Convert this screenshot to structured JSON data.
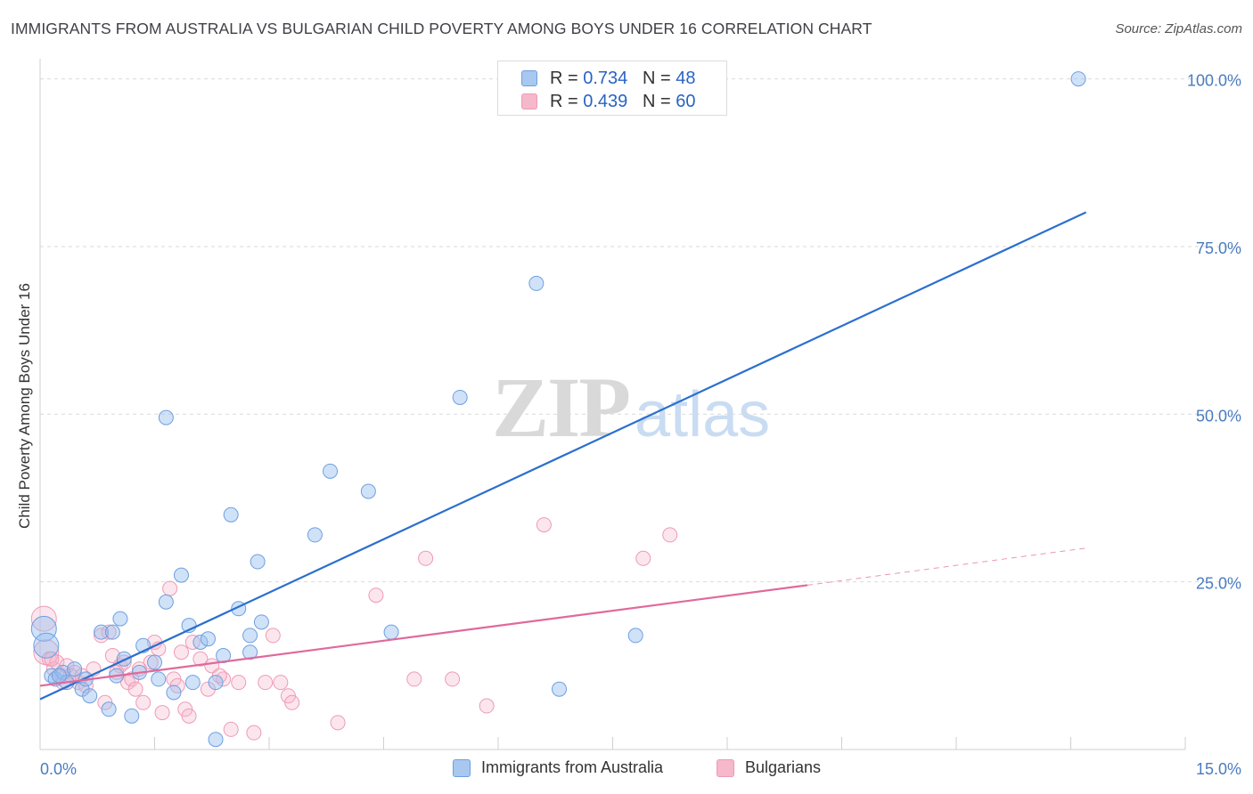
{
  "title": "IMMIGRANTS FROM AUSTRALIA VS BULGARIAN CHILD POVERTY AMONG BOYS UNDER 16 CORRELATION CHART",
  "source": "Source: ZipAtlas.com",
  "watermark": {
    "zip": "ZIP",
    "atlas": "atlas"
  },
  "legend_stats": [
    {
      "r_label": "R = ",
      "r_value": "0.734",
      "n_label": "N = ",
      "n_value": "48",
      "color": "#a8c8f0"
    },
    {
      "r_label": "R = ",
      "r_value": "0.439",
      "n_label": "N = ",
      "n_value": "60",
      "color": "#f6b8cb"
    }
  ],
  "bottom_legend": [
    {
      "label": "Immigrants from Australia",
      "color": "#a8c8f0"
    },
    {
      "label": "Bulgarians",
      "color": "#f6b8cb"
    }
  ],
  "colors": {
    "blue_line": "#2a6fcf",
    "pink_line": "#e0699a",
    "blue_fill": "rgba(150,190,240,0.45)",
    "blue_stroke": "#6e9fe0",
    "pink_fill": "rgba(246,184,203,0.35)",
    "pink_stroke": "#ee9ab6",
    "grid": "#dadada",
    "tick_label": "#4a7cc0"
  },
  "chart_data": {
    "type": "scatter",
    "title": "IMMIGRANTS FROM AUSTRALIA VS BULGARIAN CHILD POVERTY AMONG BOYS UNDER 16 CORRELATION CHART",
    "xlabel": "",
    "ylabel": "Child Poverty Among Boys Under 16",
    "xlim": [
      0,
      15
    ],
    "ylim": [
      0,
      103
    ],
    "x_tick_labels": [
      "0.0%",
      "15.0%"
    ],
    "y_ticks": [
      25,
      50,
      75,
      100
    ],
    "y_tick_labels": [
      "25.0%",
      "50.0%",
      "75.0%",
      "100.0%"
    ],
    "grid": true,
    "legend_position": "top-center",
    "series": [
      {
        "name": "Immigrants from Australia",
        "color": "#6e9fe0",
        "points": [
          [
            0.05,
            18.0
          ],
          [
            0.08,
            15.5
          ],
          [
            0.15,
            11.0
          ],
          [
            0.2,
            10.5
          ],
          [
            0.3,
            11.5
          ],
          [
            0.35,
            10.0
          ],
          [
            0.45,
            12.0
          ],
          [
            0.55,
            9.0
          ],
          [
            0.65,
            8.0
          ],
          [
            0.8,
            17.5
          ],
          [
            0.9,
            6.0
          ],
          [
            1.05,
            19.5
          ],
          [
            1.1,
            13.5
          ],
          [
            1.2,
            5.0
          ],
          [
            1.3,
            11.5
          ],
          [
            1.35,
            15.5
          ],
          [
            1.5,
            13.0
          ],
          [
            1.55,
            10.5
          ],
          [
            1.65,
            22.0
          ],
          [
            1.75,
            8.5
          ],
          [
            1.85,
            26.0
          ],
          [
            1.95,
            18.5
          ],
          [
            2.0,
            10.0
          ],
          [
            2.1,
            16.0
          ],
          [
            2.2,
            16.5
          ],
          [
            2.3,
            10.0
          ],
          [
            2.4,
            14.0
          ],
          [
            2.5,
            35.0
          ],
          [
            2.6,
            21.0
          ],
          [
            2.75,
            17.0
          ],
          [
            2.85,
            28.0
          ],
          [
            2.9,
            19.0
          ],
          [
            3.6,
            32.0
          ],
          [
            3.8,
            41.5
          ],
          [
            4.3,
            38.5
          ],
          [
            4.6,
            17.5
          ],
          [
            1.65,
            49.5
          ],
          [
            5.5,
            52.5
          ],
          [
            6.5,
            69.5
          ],
          [
            6.8,
            9.0
          ],
          [
            7.8,
            17.0
          ],
          [
            13.6,
            100.0
          ],
          [
            0.6,
            10.5
          ],
          [
            1.0,
            11.0
          ],
          [
            2.3,
            1.5
          ],
          [
            2.75,
            14.5
          ],
          [
            0.95,
            17.5
          ],
          [
            0.25,
            11.0
          ]
        ]
      },
      {
        "name": "Bulgarians",
        "color": "#ee9ab6",
        "points": [
          [
            0.05,
            19.5
          ],
          [
            0.08,
            14.5
          ],
          [
            0.12,
            13.5
          ],
          [
            0.18,
            12.0
          ],
          [
            0.22,
            13.0
          ],
          [
            0.28,
            11.0
          ],
          [
            0.35,
            12.5
          ],
          [
            0.45,
            11.5
          ],
          [
            0.5,
            10.0
          ],
          [
            0.6,
            9.5
          ],
          [
            0.7,
            12.0
          ],
          [
            0.8,
            17.0
          ],
          [
            0.85,
            7.0
          ],
          [
            0.9,
            17.5
          ],
          [
            0.95,
            14.0
          ],
          [
            1.05,
            12.5
          ],
          [
            1.1,
            13.0
          ],
          [
            1.15,
            10.0
          ],
          [
            1.2,
            10.5
          ],
          [
            1.25,
            9.0
          ],
          [
            1.35,
            7.0
          ],
          [
            1.45,
            13.0
          ],
          [
            1.5,
            16.0
          ],
          [
            1.55,
            15.0
          ],
          [
            1.6,
            5.5
          ],
          [
            1.7,
            24.0
          ],
          [
            1.75,
            10.5
          ],
          [
            1.8,
            9.5
          ],
          [
            1.85,
            14.5
          ],
          [
            1.9,
            6.0
          ],
          [
            1.95,
            5.0
          ],
          [
            2.0,
            16.0
          ],
          [
            2.1,
            13.5
          ],
          [
            2.2,
            9.0
          ],
          [
            2.25,
            12.5
          ],
          [
            2.4,
            10.5
          ],
          [
            2.5,
            3.0
          ],
          [
            2.6,
            10.0
          ],
          [
            2.8,
            2.5
          ],
          [
            2.95,
            10.0
          ],
          [
            3.05,
            17.0
          ],
          [
            3.15,
            10.0
          ],
          [
            3.25,
            8.0
          ],
          [
            3.3,
            7.0
          ],
          [
            3.9,
            4.0
          ],
          [
            4.4,
            23.0
          ],
          [
            4.9,
            10.5
          ],
          [
            5.05,
            28.5
          ],
          [
            5.4,
            10.5
          ],
          [
            5.85,
            6.5
          ],
          [
            6.6,
            33.5
          ],
          [
            7.9,
            28.5
          ],
          [
            8.25,
            32.0
          ],
          [
            0.3,
            10.0
          ],
          [
            0.4,
            11.0
          ],
          [
            1.3,
            12.0
          ],
          [
            0.15,
            13.5
          ],
          [
            0.55,
            11.0
          ],
          [
            1.0,
            11.5
          ],
          [
            2.35,
            11.0
          ]
        ]
      }
    ],
    "trend_lines": [
      {
        "series": "Immigrants from Australia",
        "x": [
          0,
          15
        ],
        "y": [
          7.5,
          87.0
        ],
        "style": "solid"
      },
      {
        "series": "Bulgarians",
        "x": [
          0,
          10.05
        ],
        "y": [
          9.5,
          24.5
        ],
        "style": "solid"
      },
      {
        "series": "Bulgarians",
        "x": [
          10.05,
          15
        ],
        "y": [
          24.5,
          32.0
        ],
        "style": "dashed"
      }
    ]
  }
}
